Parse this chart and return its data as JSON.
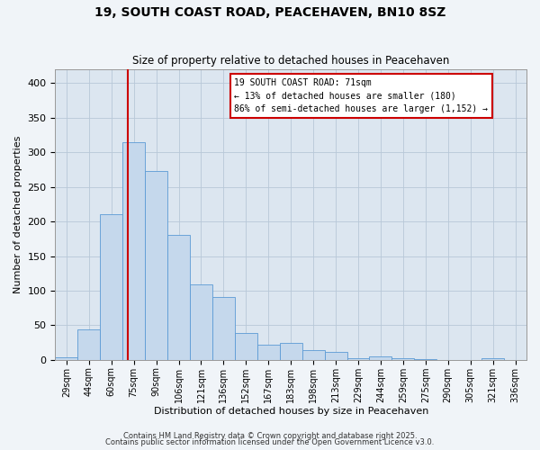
{
  "title_line1": "19, SOUTH COAST ROAD, PEACEHAVEN, BN10 8SZ",
  "title_line2": "Size of property relative to detached houses in Peacehaven",
  "xlabel": "Distribution of detached houses by size in Peacehaven",
  "ylabel": "Number of detached properties",
  "bar_labels": [
    "29sqm",
    "44sqm",
    "60sqm",
    "75sqm",
    "90sqm",
    "106sqm",
    "121sqm",
    "136sqm",
    "152sqm",
    "167sqm",
    "183sqm",
    "198sqm",
    "213sqm",
    "229sqm",
    "244sqm",
    "259sqm",
    "275sqm",
    "290sqm",
    "305sqm",
    "321sqm",
    "336sqm"
  ],
  "bar_values": [
    4,
    44,
    210,
    315,
    273,
    180,
    109,
    91,
    39,
    22,
    24,
    14,
    11,
    3,
    5,
    2,
    1,
    0,
    0,
    3,
    0
  ],
  "bar_color": "#c5d8ec",
  "bar_edge_color": "#5b9bd5",
  "grid_color": "#b8c8d8",
  "background_color": "#dce6f0",
  "fig_facecolor": "#f0f4f8",
  "vline_x_index": 2.73,
  "vline_color": "#cc0000",
  "annotation_text": "19 SOUTH COAST ROAD: 71sqm\n← 13% of detached houses are smaller (180)\n86% of semi-detached houses are larger (1,152) →",
  "annotation_box_facecolor": "#ffffff",
  "annotation_box_edgecolor": "#cc0000",
  "ylim": [
    0,
    420
  ],
  "yticks": [
    0,
    50,
    100,
    150,
    200,
    250,
    300,
    350,
    400
  ],
  "footer_line1": "Contains HM Land Registry data © Crown copyright and database right 2025.",
  "footer_line2": "Contains public sector information licensed under the Open Government Licence v3.0."
}
